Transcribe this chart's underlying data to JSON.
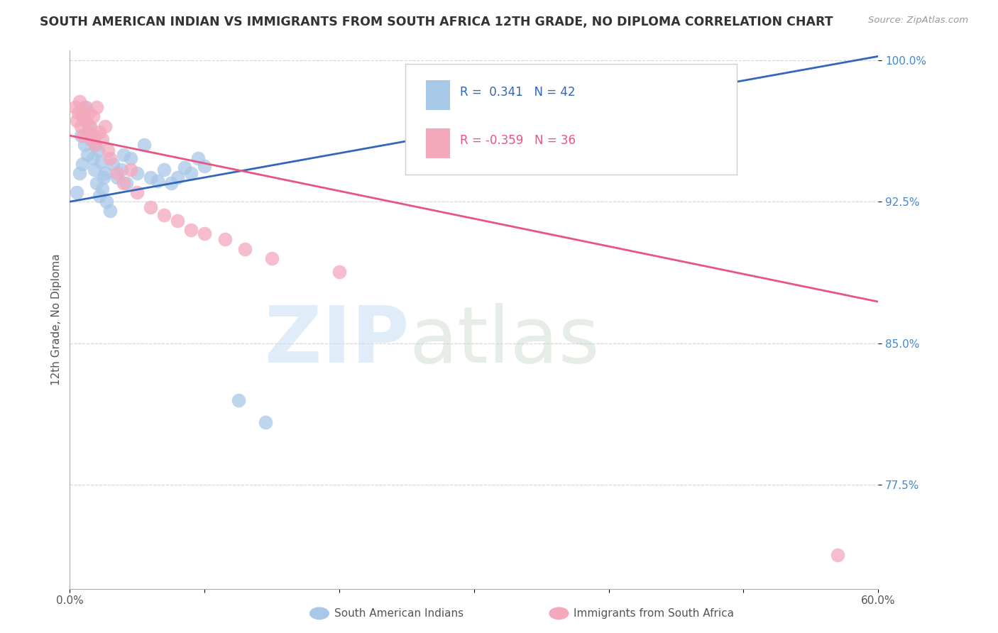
{
  "title": "SOUTH AMERICAN INDIAN VS IMMIGRANTS FROM SOUTH AFRICA 12TH GRADE, NO DIPLOMA CORRELATION CHART",
  "source": "Source: ZipAtlas.com",
  "ylabel": "12th Grade, No Diploma",
  "xlim": [
    0.0,
    0.6
  ],
  "ylim": [
    0.72,
    1.005
  ],
  "xtick_positions": [
    0.0,
    0.1,
    0.2,
    0.3,
    0.4,
    0.5,
    0.6
  ],
  "xticklabels": [
    "0.0%",
    "",
    "",
    "",
    "",
    "",
    "60.0%"
  ],
  "ytick_positions": [
    0.775,
    0.85,
    0.925,
    1.0
  ],
  "ytick_labels": [
    "77.5%",
    "85.0%",
    "92.5%",
    "100.0%"
  ],
  "r_blue": 0.341,
  "n_blue": 42,
  "r_pink": -0.359,
  "n_pink": 36,
  "blue_color": "#a8c8e8",
  "pink_color": "#f4a8bc",
  "blue_line_color": "#3366bb",
  "pink_line_color": "#e85580",
  "legend_label_blue": "South American Indians",
  "legend_label_pink": "Immigrants from South Africa",
  "blue_line_x0": 0.0,
  "blue_line_y0": 0.925,
  "blue_line_x1": 0.6,
  "blue_line_y1": 1.002,
  "pink_line_x0": 0.0,
  "pink_line_y0": 0.96,
  "pink_line_x1": 0.6,
  "pink_line_y1": 0.872,
  "blue_scatter_x": [
    0.005,
    0.007,
    0.008,
    0.009,
    0.01,
    0.011,
    0.012,
    0.013,
    0.014,
    0.015,
    0.016,
    0.017,
    0.018,
    0.019,
    0.02,
    0.021,
    0.022,
    0.023,
    0.024,
    0.025,
    0.026,
    0.027,
    0.03,
    0.032,
    0.035,
    0.038,
    0.04,
    0.042,
    0.045,
    0.05,
    0.055,
    0.06,
    0.065,
    0.07,
    0.075,
    0.08,
    0.085,
    0.09,
    0.095,
    0.1,
    0.125,
    0.145
  ],
  "blue_scatter_y": [
    0.93,
    0.94,
    0.96,
    0.945,
    0.97,
    0.955,
    0.975,
    0.95,
    0.965,
    0.958,
    0.96,
    0.948,
    0.942,
    0.955,
    0.935,
    0.952,
    0.928,
    0.946,
    0.932,
    0.938,
    0.94,
    0.925,
    0.92,
    0.945,
    0.938,
    0.942,
    0.95,
    0.935,
    0.948,
    0.94,
    0.955,
    0.938,
    0.936,
    0.942,
    0.935,
    0.938,
    0.943,
    0.94,
    0.948,
    0.944,
    0.82,
    0.808
  ],
  "pink_scatter_x": [
    0.004,
    0.005,
    0.006,
    0.007,
    0.008,
    0.009,
    0.01,
    0.011,
    0.012,
    0.013,
    0.014,
    0.015,
    0.016,
    0.017,
    0.018,
    0.019,
    0.02,
    0.022,
    0.024,
    0.026,
    0.028,
    0.03,
    0.035,
    0.04,
    0.045,
    0.05,
    0.06,
    0.07,
    0.08,
    0.09,
    0.1,
    0.115,
    0.13,
    0.15,
    0.2,
    0.57
  ],
  "pink_scatter_y": [
    0.975,
    0.968,
    0.972,
    0.978,
    0.965,
    0.97,
    0.96,
    0.975,
    0.968,
    0.962,
    0.972,
    0.965,
    0.958,
    0.97,
    0.96,
    0.955,
    0.975,
    0.962,
    0.958,
    0.965,
    0.952,
    0.948,
    0.94,
    0.935,
    0.942,
    0.93,
    0.922,
    0.918,
    0.915,
    0.91,
    0.908,
    0.905,
    0.9,
    0.895,
    0.888,
    0.738
  ]
}
